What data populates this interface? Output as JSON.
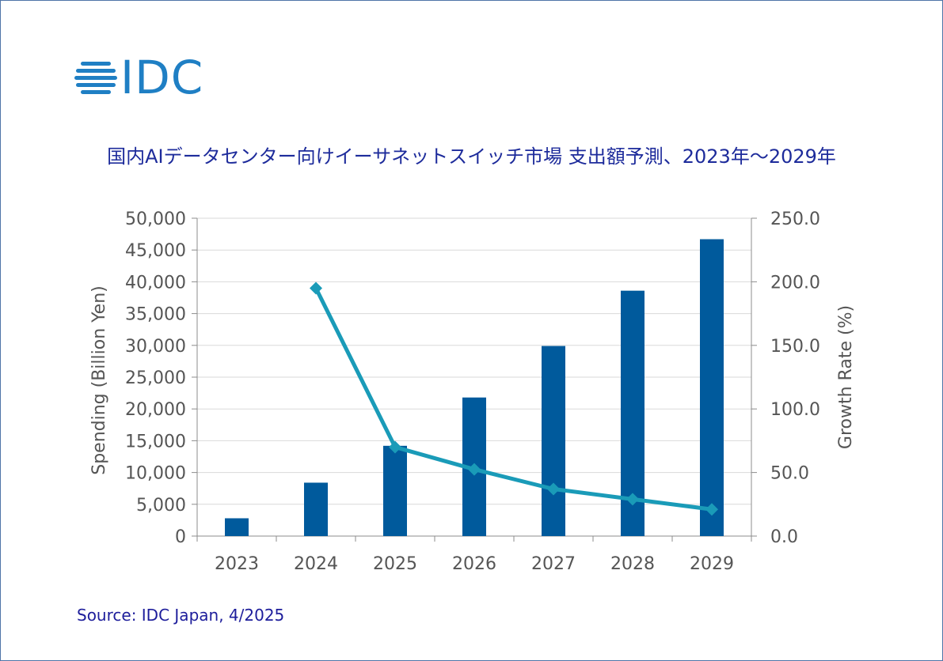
{
  "logo": {
    "text": "IDC",
    "color": "#1f7fc4"
  },
  "title": "国内AIデータセンター向けイーサネットスイッチ市場 支出額予測、2023年～2029年",
  "source": "Source: IDC Japan, 4/2025",
  "chart_data": {
    "type": "bar",
    "title": "国内AIデータセンター向けイーサネットスイッチ市場 支出額予測、2023年～2029年",
    "categories": [
      "2023",
      "2024",
      "2025",
      "2026",
      "2027",
      "2028",
      "2029"
    ],
    "series": [
      {
        "name": "Spending",
        "type": "bar",
        "axis": "left",
        "color": "#005a9c",
        "values": [
          2800,
          8400,
          14200,
          21800,
          29900,
          38600,
          46700
        ]
      },
      {
        "name": "Growth Rate",
        "type": "line",
        "axis": "right",
        "color": "#1a9bb8",
        "values": [
          null,
          195.0,
          70.0,
          52.5,
          37.0,
          29.0,
          21.0
        ]
      }
    ],
    "ylabel": "Spending (Billion Yen)",
    "y2label": "Growth Rate (%)",
    "ylim": [
      0,
      50000
    ],
    "y2lim": [
      0,
      250
    ],
    "yticks": [
      "0",
      "5,000",
      "10,000",
      "15,000",
      "20,000",
      "25,000",
      "30,000",
      "35,000",
      "40,000",
      "45,000",
      "50,000"
    ],
    "y2ticks": [
      "0.0",
      "50.0",
      "100.0",
      "150.0",
      "200.0",
      "250.0"
    ],
    "grid": true
  }
}
